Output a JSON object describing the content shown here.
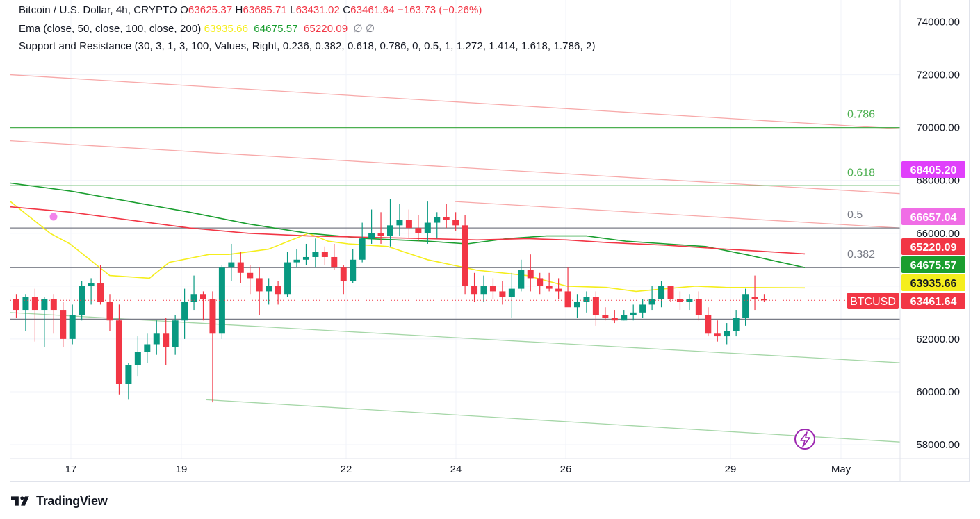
{
  "header": {
    "symbol_line": "Bitcoin / U.S. Dollar, 4h, CRYPTO",
    "ohlc": [
      {
        "k": "O",
        "v": "63625.37"
      },
      {
        "k": "H",
        "v": "63685.71"
      },
      {
        "k": "L",
        "v": "63431.02"
      },
      {
        "k": "C",
        "v": "63461.64"
      }
    ],
    "change": "−163.73 (−0.26%)",
    "ema_label": "Ema (close, 50, close, 100, close, 200)",
    "ema_values": [
      {
        "v": "63935.66",
        "color": "#f5ee1d"
      },
      {
        "v": "64675.57",
        "color": "#1a9e2f"
      },
      {
        "v": "65220.09",
        "color": "#f23645"
      }
    ],
    "ema_empty": "∅  ∅",
    "sr_label": "Support and Resistance (30, 3, 1, 3, 100, Values, Right, 0.236, 0.382, 0.618, 0.786, 0, 0.5, 1, 1.272, 1.414, 1.618, 1.786, 2)"
  },
  "footer": {
    "brand": "TradingView"
  },
  "chart_data": {
    "type": "candlestick",
    "symbol": "BTCUSD",
    "timeframe": "4h",
    "x_ticks": [
      "17",
      "19",
      "22",
      "24",
      "26",
      "29",
      "May"
    ],
    "y_ticks": [
      "58000.00",
      "60000.00",
      "62000.00",
      "64000.00",
      "66000.00",
      "68000.00",
      "70000.00",
      "72000.00",
      "74000.00"
    ],
    "ylim": [
      57700,
      75000
    ],
    "candles": [
      [
        63500,
        63700,
        62800,
        63100
      ],
      [
        63100,
        63700,
        62300,
        63600
      ],
      [
        63600,
        63900,
        61900,
        63100
      ],
      [
        63100,
        63600,
        61700,
        63500
      ],
      [
        63500,
        63700,
        62200,
        63100
      ],
      [
        63100,
        63400,
        61700,
        62000
      ],
      [
        62000,
        63300,
        61800,
        62900
      ],
      [
        62900,
        64200,
        62700,
        64000
      ],
      [
        64000,
        64300,
        63300,
        64100
      ],
      [
        64100,
        64800,
        63300,
        63400
      ],
      [
        63400,
        63700,
        62300,
        62700
      ],
      [
        62700,
        63300,
        59900,
        60300
      ],
      [
        60300,
        61100,
        59700,
        61000
      ],
      [
        61000,
        62100,
        60600,
        61500
      ],
      [
        61500,
        62200,
        61100,
        61800
      ],
      [
        61800,
        62700,
        61400,
        62200
      ],
      [
        62200,
        62800,
        61000,
        61700
      ],
      [
        61700,
        62900,
        61400,
        62700
      ],
      [
        62700,
        63900,
        62000,
        63400
      ],
      [
        63400,
        64400,
        63100,
        63700
      ],
      [
        63700,
        63800,
        62700,
        63500
      ],
      [
        63500,
        63800,
        59600,
        62200
      ],
      [
        62200,
        64800,
        62000,
        64700
      ],
      [
        64700,
        65600,
        64200,
        64900
      ],
      [
        64900,
        65300,
        64100,
        64500
      ],
      [
        64500,
        64800,
        63700,
        64300
      ],
      [
        64300,
        64700,
        62900,
        63800
      ],
      [
        63800,
        64300,
        63300,
        64000
      ],
      [
        64000,
        64200,
        63300,
        63700
      ],
      [
        63700,
        65300,
        63600,
        64900
      ],
      [
        64900,
        65400,
        64700,
        65000
      ],
      [
        65000,
        65600,
        64800,
        65100
      ],
      [
        65100,
        65800,
        64700,
        65300
      ],
      [
        65300,
        65500,
        64800,
        65100
      ],
      [
        65100,
        65600,
        64600,
        64700
      ],
      [
        64700,
        64800,
        63700,
        64200
      ],
      [
        64200,
        65400,
        64100,
        65000
      ],
      [
        65000,
        66400,
        64900,
        65800
      ],
      [
        65800,
        66900,
        65600,
        66000
      ],
      [
        66000,
        66800,
        65600,
        65900
      ],
      [
        65900,
        67300,
        65500,
        66300
      ],
      [
        66300,
        67100,
        65900,
        66500
      ],
      [
        66500,
        66900,
        65800,
        66200
      ],
      [
        66200,
        66700,
        65700,
        66000
      ],
      [
        66000,
        67200,
        65600,
        66400
      ],
      [
        66400,
        66800,
        65800,
        66600
      ],
      [
        66600,
        67100,
        66200,
        66500
      ],
      [
        66500,
        66800,
        66100,
        66300
      ],
      [
        66300,
        66700,
        63700,
        64000
      ],
      [
        64000,
        64500,
        63400,
        63700
      ],
      [
        63700,
        64400,
        63400,
        64000
      ],
      [
        64000,
        64300,
        63500,
        63800
      ],
      [
        63800,
        64200,
        63300,
        63600
      ],
      [
        63600,
        64500,
        62800,
        63900
      ],
      [
        63900,
        65000,
        63800,
        64600
      ],
      [
        64600,
        65200,
        63800,
        64300
      ],
      [
        64300,
        64500,
        63700,
        64000
      ],
      [
        64000,
        64500,
        63800,
        63900
      ],
      [
        63900,
        64300,
        63500,
        63800
      ],
      [
        63800,
        64700,
        63300,
        63200
      ],
      [
        63200,
        63700,
        62800,
        63400
      ],
      [
        63400,
        63800,
        63000,
        63600
      ],
      [
        63600,
        63800,
        62500,
        62900
      ],
      [
        62900,
        63200,
        62700,
        62800
      ],
      [
        62800,
        63100,
        62600,
        62700
      ],
      [
        62700,
        63100,
        62700,
        62900
      ],
      [
        62900,
        63300,
        62700,
        63000
      ],
      [
        63000,
        63500,
        62800,
        63300
      ],
      [
        63300,
        64000,
        63100,
        63500
      ],
      [
        63500,
        64200,
        63200,
        64000
      ],
      [
        64000,
        64000,
        63400,
        63500
      ],
      [
        63500,
        63800,
        63100,
        63400
      ],
      [
        63400,
        63700,
        63100,
        63500
      ],
      [
        63500,
        63800,
        62700,
        62900
      ],
      [
        62900,
        63200,
        62100,
        62200
      ],
      [
        62200,
        62700,
        61900,
        62100
      ],
      [
        62100,
        62600,
        61800,
        62300
      ],
      [
        62300,
        63100,
        62100,
        62800
      ],
      [
        62800,
        63900,
        62500,
        63700
      ],
      [
        63600,
        64400,
        63100,
        63500
      ],
      [
        63500,
        63700,
        63400,
        63460
      ]
    ],
    "candle_x_start": 23.5,
    "candle_x_step": 13.45,
    "ema_series": [
      {
        "name": "EMA 50",
        "color": "#f5ee1d",
        "points": [
          [
            0,
            67200
          ],
          [
            20,
            66600
          ],
          [
            40,
            66000
          ],
          [
            60,
            65600
          ],
          [
            80,
            65000
          ],
          [
            100,
            64400
          ],
          [
            140,
            64300
          ],
          [
            160,
            64900
          ],
          [
            200,
            65200
          ],
          [
            220,
            65200
          ],
          [
            260,
            65400
          ],
          [
            300,
            66000
          ],
          [
            320,
            65700
          ],
          [
            340,
            65600
          ],
          [
            380,
            65500
          ],
          [
            420,
            65000
          ],
          [
            470,
            64600
          ],
          [
            520,
            64400
          ],
          [
            560,
            64000
          ],
          [
            600,
            63950
          ],
          [
            630,
            63800
          ],
          [
            660,
            63900
          ],
          [
            690,
            64000
          ],
          [
            720,
            63950
          ],
          [
            800,
            63935
          ]
        ]
      },
      {
        "name": "EMA 100",
        "color": "#1a9e2f",
        "points": [
          [
            0,
            67900
          ],
          [
            60,
            67600
          ],
          [
            120,
            67200
          ],
          [
            180,
            66800
          ],
          [
            240,
            66350
          ],
          [
            300,
            66000
          ],
          [
            360,
            65800
          ],
          [
            420,
            65700
          ],
          [
            460,
            65600
          ],
          [
            500,
            65800
          ],
          [
            540,
            65900
          ],
          [
            580,
            65900
          ],
          [
            620,
            65700
          ],
          [
            660,
            65600
          ],
          [
            700,
            65500
          ],
          [
            740,
            65200
          ],
          [
            800,
            64700
          ]
        ]
      },
      {
        "name": "EMA 200",
        "color": "#f23645",
        "points": [
          [
            0,
            67000
          ],
          [
            60,
            66800
          ],
          [
            120,
            66500
          ],
          [
            180,
            66200
          ],
          [
            240,
            66000
          ],
          [
            300,
            65900
          ],
          [
            360,
            65850
          ],
          [
            420,
            65800
          ],
          [
            470,
            65750
          ],
          [
            520,
            65800
          ],
          [
            560,
            65750
          ],
          [
            600,
            65650
          ],
          [
            660,
            65550
          ],
          [
            720,
            65400
          ],
          [
            800,
            65220
          ]
        ]
      }
    ],
    "sr_levels": [
      {
        "label": "0.786",
        "value": 70000,
        "color": "#4caf50"
      },
      {
        "label": "0.618",
        "value": 67800,
        "color": "#4caf50"
      },
      {
        "label": "0.5",
        "value": 66200,
        "color": "#787b86"
      },
      {
        "label": "0.382",
        "value": 64700,
        "color": "#787b86"
      },
      {
        "value": 62750,
        "color": "#787b86"
      }
    ],
    "trend_lines": [
      {
        "color": "#f7a9a9",
        "from": [
          0,
          72000
        ],
        "to": [
          1000,
          69950
        ]
      },
      {
        "color": "#f7a9a9",
        "from": [
          0,
          69500
        ],
        "to": [
          1000,
          67500
        ]
      },
      {
        "color": "#f7a9a9",
        "from": [
          500,
          67200
        ],
        "to": [
          1000,
          66200
        ]
      },
      {
        "color": "#a5d6a7",
        "from": [
          0,
          63000
        ],
        "to": [
          1000,
          61100
        ]
      },
      {
        "color": "#a5d6a7",
        "from": [
          220,
          59700
        ],
        "to": [
          1000,
          58100
        ]
      }
    ],
    "price_labels": [
      {
        "text": "68405.20",
        "value": 68405.2,
        "color": "#e040fb"
      },
      {
        "text": "66657.04",
        "value": 66657.04,
        "color": "#f06de6"
      },
      {
        "text": "65220.09",
        "value": 65220.09,
        "color": "#f23645"
      },
      {
        "text": "64675.57",
        "value": 64675.57,
        "color": "#1a9e2f"
      },
      {
        "text": "63935.66",
        "value": 63935.66,
        "color": "#f5ee1d",
        "text_color": "#131722"
      },
      {
        "text": "63461.64",
        "value": 63461.64,
        "color": "#f23645"
      }
    ],
    "symbol_tag": "BTCUSD",
    "up_color": "#089981",
    "down_color": "#f23645"
  }
}
